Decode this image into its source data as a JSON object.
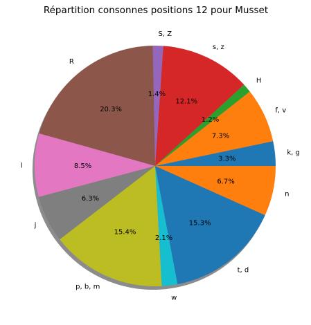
{
  "chart_data": {
    "type": "pie",
    "title": "Répartition consonnes positions 12 pour Musset",
    "shadow": true,
    "start_angle_deg": 0,
    "direction": "counterclockwise",
    "slices": [
      {
        "label": "k, g",
        "value": 3.3,
        "pct_label": "3.3%",
        "color": "#1f77b4"
      },
      {
        "label": "f, v",
        "value": 7.3,
        "pct_label": "7.3%",
        "color": "#ff7f0e"
      },
      {
        "label": "H",
        "value": 1.2,
        "pct_label": "1.2%",
        "color": "#2ca02c"
      },
      {
        "label": "s, z",
        "value": 12.1,
        "pct_label": "12.1%",
        "color": "#d62728"
      },
      {
        "label": "S, Z",
        "value": 1.4,
        "pct_label": "1.4%",
        "color": "#9467bd"
      },
      {
        "label": "R",
        "value": 20.3,
        "pct_label": "20.3%",
        "color": "#8c564b"
      },
      {
        "label": "l",
        "value": 8.5,
        "pct_label": "8.5%",
        "color": "#e377c2"
      },
      {
        "label": "j",
        "value": 6.3,
        "pct_label": "6.3%",
        "color": "#7f7f7f"
      },
      {
        "label": "p, b, m",
        "value": 15.4,
        "pct_label": "15.4%",
        "color": "#bcbd22"
      },
      {
        "label": "w",
        "value": 2.1,
        "pct_label": "2.1%",
        "color": "#17becf"
      },
      {
        "label": "t, d",
        "value": 15.3,
        "pct_label": "15.3%",
        "color": "#1f77b4"
      },
      {
        "label": "n",
        "value": 6.7,
        "pct_label": "6.7%",
        "color": "#ff7f0e"
      }
    ]
  }
}
